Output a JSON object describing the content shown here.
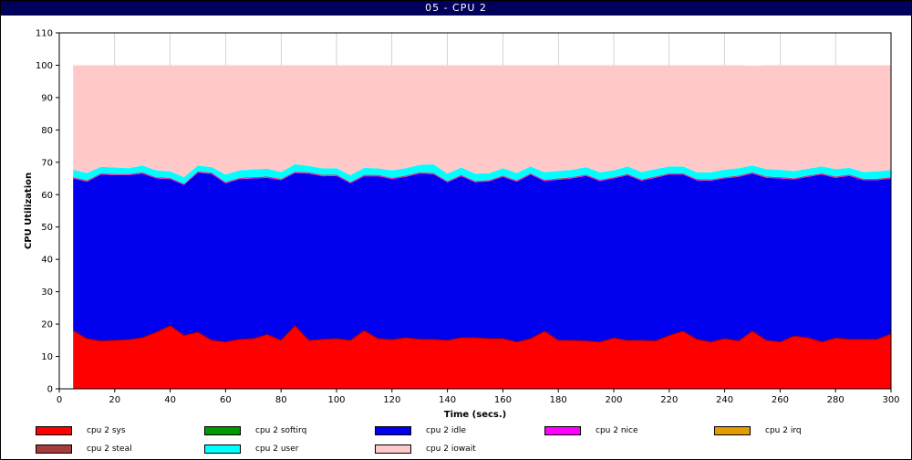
{
  "window": {
    "title": "05 - CPU 2"
  },
  "colors": {
    "sys": "#ff0000",
    "softirq": "#009900",
    "idle": "#0000ee",
    "nice": "#ff00ff",
    "irq": "#e39b00",
    "steal": "#a63c3c",
    "user": "#00ffff",
    "iowait": "#ffc9c9"
  },
  "chart_data": {
    "type": "area",
    "stacked": true,
    "xlabel": "Time (secs.)",
    "ylabel": "CPU Utilization",
    "xlim": [
      0,
      300
    ],
    "ylim": [
      0,
      110
    ],
    "xticks": [
      0,
      20,
      40,
      60,
      80,
      100,
      120,
      140,
      160,
      180,
      200,
      220,
      240,
      260,
      280,
      300
    ],
    "yticks": [
      0,
      10,
      20,
      30,
      40,
      50,
      60,
      70,
      80,
      90,
      100,
      110
    ],
    "grid": true,
    "legend_position": "bottom",
    "x": [
      5,
      10,
      15,
      20,
      25,
      30,
      35,
      40,
      45,
      50,
      55,
      60,
      65,
      70,
      75,
      80,
      85,
      90,
      95,
      100,
      105,
      110,
      115,
      120,
      125,
      130,
      135,
      140,
      145,
      150,
      155,
      160,
      165,
      170,
      175,
      180,
      185,
      190,
      195,
      200,
      205,
      210,
      215,
      220,
      225,
      230,
      235,
      240,
      245,
      250,
      255,
      260,
      265,
      270,
      275,
      280,
      285,
      290,
      295,
      300
    ],
    "series": [
      {
        "name": "cpu 2 sys",
        "color_key": "sys",
        "values": [
          18,
          15.5,
          14.8,
          15,
          15.2,
          15.8,
          17.5,
          19.5,
          16.5,
          17.5,
          15,
          14.5,
          15.3,
          15.5,
          16.8,
          15,
          19.5,
          15,
          15.3,
          15.5,
          15,
          18,
          15.5,
          15.2,
          15.8,
          15.3,
          15.3,
          15,
          15.8,
          15.8,
          15.5,
          15.5,
          14.5,
          15.5,
          17.8,
          15,
          15,
          14.8,
          14.5,
          15.7,
          15,
          15,
          14.8,
          16.5,
          17.8,
          15.3,
          14.5,
          15.5,
          14.8,
          17.8,
          15,
          14.5,
          16.3,
          15.8,
          14.5,
          15.7,
          15.3,
          15.3,
          15.3,
          17
        ]
      },
      {
        "name": "cpu 2 softirq",
        "color_key": "softirq",
        "values": [
          0,
          0,
          0,
          0,
          0,
          0,
          0,
          0,
          0,
          0,
          0,
          0,
          0,
          0,
          0,
          0,
          0,
          0,
          0,
          0,
          0,
          0,
          0,
          0,
          0,
          0,
          0,
          0,
          0,
          0,
          0,
          0,
          0,
          0,
          0,
          0,
          0,
          0,
          0,
          0,
          0,
          0,
          0,
          0,
          0,
          0,
          0,
          0,
          0,
          0,
          0,
          0,
          0,
          0,
          0,
          0,
          0,
          0,
          0,
          0
        ]
      },
      {
        "name": "cpu 2 idle",
        "color_key": "idle",
        "values": [
          47,
          48.5,
          51.4,
          51,
          50.8,
          50.7,
          47.5,
          45.3,
          46.5,
          49.3,
          51.4,
          49,
          49.5,
          49.5,
          48.4,
          49.5,
          47.2,
          51.5,
          50.4,
          50.3,
          48.5,
          47.7,
          50.2,
          49.6,
          49.7,
          51.2,
          51,
          48.8,
          49.9,
          48,
          48.6,
          50,
          49.5,
          50.7,
          46.4,
          49.6,
          50,
          51,
          49.7,
          49.3,
          51,
          49.3,
          50.4,
          49.7,
          48.4,
          49.1,
          49.8,
          49.5,
          50.7,
          48.7,
          50.2,
          50.5,
          48.4,
          49.7,
          51.7,
          49.5,
          50.5,
          49.2,
          49.2,
          48
        ]
      },
      {
        "name": "cpu 2 nice",
        "color_key": "nice",
        "values": [
          0.2,
          0.2,
          0.2,
          0.2,
          0.2,
          0.2,
          0.2,
          0.2,
          0.2,
          0.2,
          0.2,
          0.2,
          0.2,
          0.2,
          0.2,
          0.2,
          0.2,
          0.2,
          0.2,
          0.2,
          0.2,
          0.2,
          0.2,
          0.2,
          0.2,
          0.2,
          0.2,
          0.2,
          0.2,
          0.2,
          0.2,
          0.2,
          0.2,
          0.2,
          0.2,
          0.2,
          0.2,
          0.2,
          0.2,
          0.2,
          0.2,
          0.2,
          0.2,
          0.2,
          0.2,
          0.2,
          0.2,
          0.2,
          0.2,
          0.2,
          0.2,
          0.2,
          0.2,
          0.2,
          0.2,
          0.2,
          0.2,
          0.2,
          0.2,
          0.2
        ]
      },
      {
        "name": "cpu 2 irq",
        "color_key": "irq",
        "values": [
          0,
          0,
          0,
          0,
          0,
          0,
          0,
          0,
          0,
          0,
          0,
          0,
          0,
          0,
          0,
          0,
          0,
          0,
          0,
          0,
          0,
          0,
          0,
          0,
          0,
          0,
          0,
          0,
          0,
          0,
          0,
          0,
          0,
          0,
          0,
          0,
          0,
          0,
          0,
          0,
          0,
          0,
          0,
          0,
          0,
          0,
          0,
          0,
          0,
          0,
          0,
          0,
          0,
          0,
          0,
          0,
          0,
          0,
          0,
          0
        ]
      },
      {
        "name": "cpu 2 steal",
        "color_key": "steal",
        "values": [
          0.2,
          0.2,
          0.2,
          0.2,
          0.2,
          0.2,
          0.2,
          0.2,
          0.2,
          0.2,
          0.2,
          0.2,
          0.2,
          0.2,
          0.2,
          0.2,
          0.2,
          0.2,
          0.2,
          0.2,
          0.2,
          0.2,
          0.2,
          0.2,
          0.2,
          0.2,
          0.2,
          0.2,
          0.2,
          0.2,
          0.2,
          0.2,
          0.2,
          0.2,
          0.2,
          0.2,
          0.2,
          0.2,
          0.2,
          0.2,
          0.2,
          0.2,
          0.2,
          0.2,
          0.2,
          0.2,
          0.2,
          0.2,
          0.2,
          0.2,
          0.2,
          0.2,
          0.2,
          0.2,
          0.2,
          0.2,
          0.2,
          0.2,
          0.2,
          0.2
        ]
      },
      {
        "name": "cpu 2 user",
        "color_key": "user",
        "values": [
          2.3,
          2.3,
          2,
          2,
          1.8,
          2.1,
          2.1,
          2,
          2,
          1.8,
          1.7,
          2.3,
          2.3,
          2.4,
          2.4,
          2.1,
          2.3,
          2,
          2,
          2,
          2.1,
          2.2,
          2,
          2.3,
          2.3,
          2.3,
          2.7,
          2.3,
          2.3,
          2.3,
          2.1,
          2.3,
          2.3,
          2.1,
          2.3,
          2.3,
          2.3,
          2.3,
          2.3,
          2.1,
          2.3,
          2.3,
          2.3,
          2.1,
          2.1,
          2.1,
          2.2,
          2.3,
          2.3,
          2.1,
          2.3,
          2.3,
          2.2,
          2.1,
          2.1,
          2.3,
          2.1,
          2.1,
          2.3,
          2.2
        ]
      },
      {
        "name": "cpu 2 iowait",
        "color_key": "iowait",
        "values": [
          32.3,
          33.3,
          31.4,
          31.6,
          31.8,
          31,
          32.5,
          32.8,
          34.6,
          31,
          31.5,
          33.8,
          32.5,
          32.2,
          32,
          33,
          30.6,
          31.1,
          31.9,
          31.8,
          34,
          31.7,
          31.9,
          32.5,
          31.8,
          30.8,
          30.6,
          33.5,
          31.6,
          33.5,
          33.4,
          31.8,
          33.3,
          31.3,
          33.1,
          32.7,
          32.3,
          31.5,
          33.1,
          32.5,
          31.3,
          33,
          32.1,
          31.3,
          31.3,
          33.1,
          33.1,
          32.3,
          31.8,
          30.8,
          32.1,
          32.3,
          32.7,
          32,
          31.3,
          32.1,
          31.7,
          33,
          32.8,
          32.4
        ]
      }
    ]
  }
}
